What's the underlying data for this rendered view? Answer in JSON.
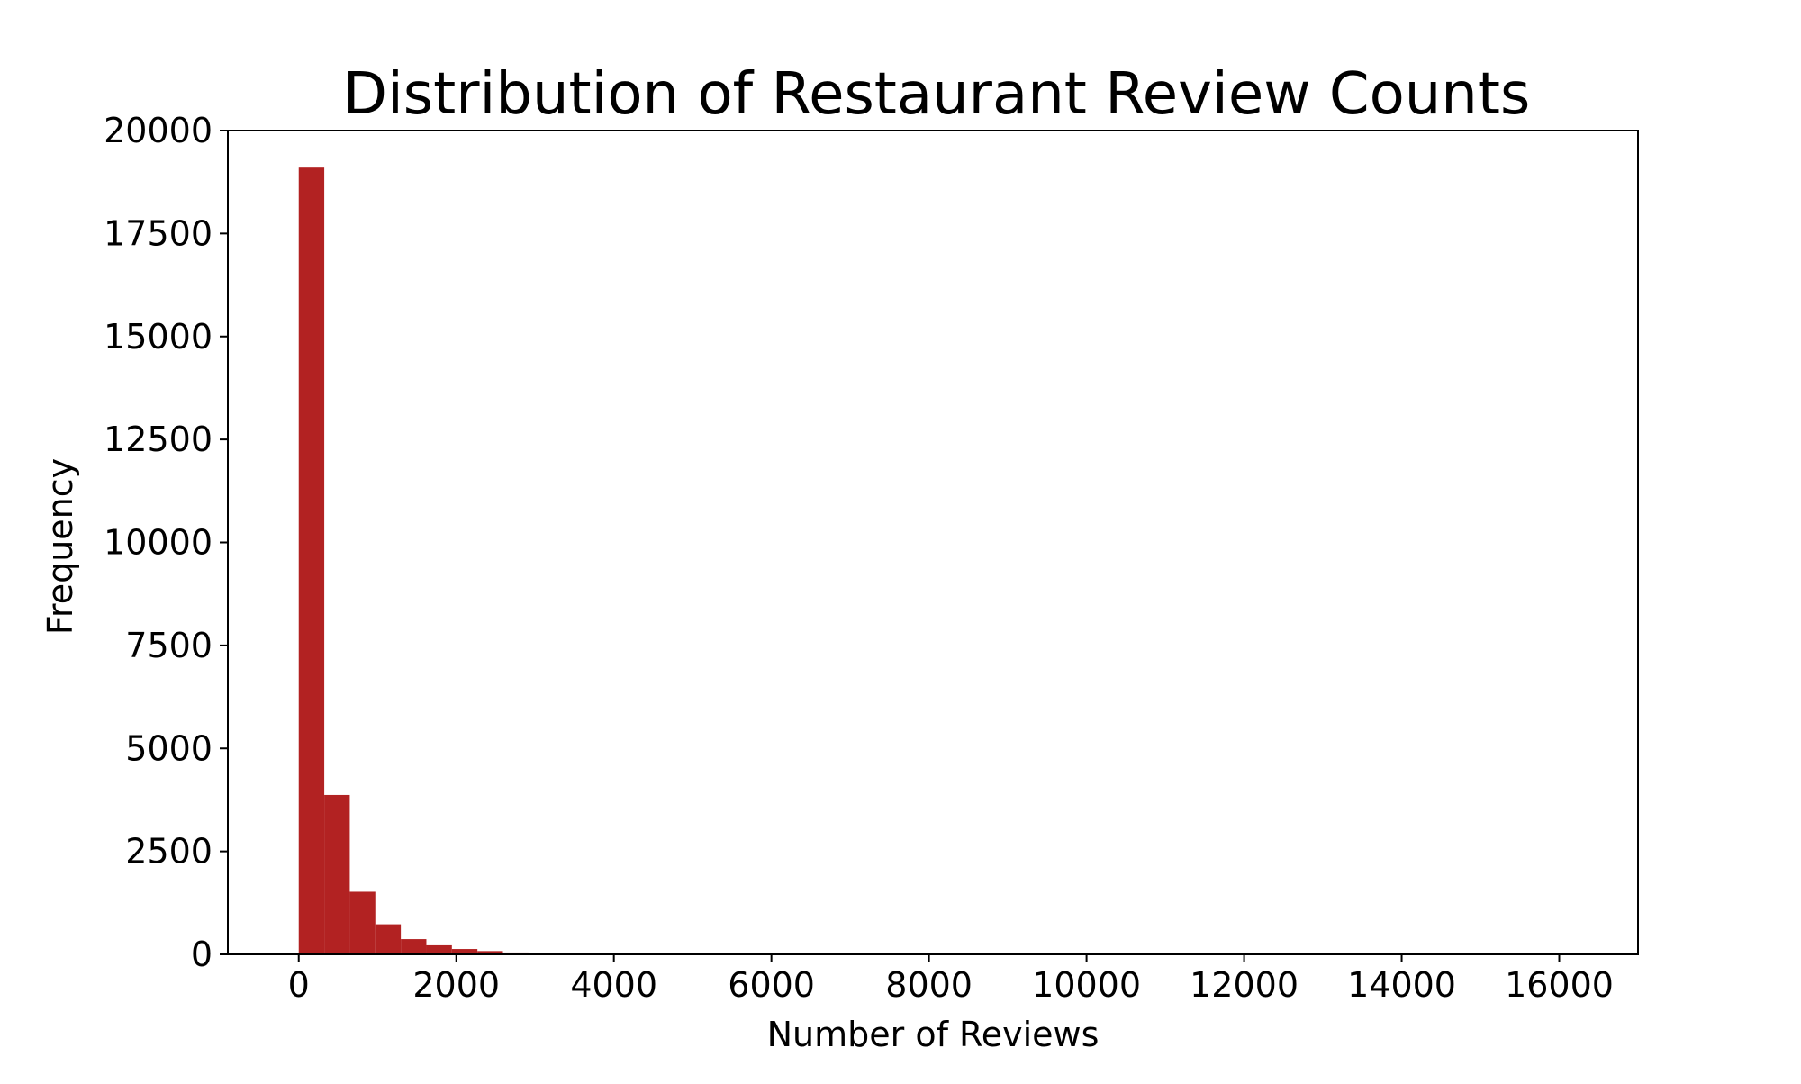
{
  "chart_data": {
    "type": "bar",
    "title": "Distribution of Restaurant Review Counts",
    "xlabel": "Number of Reviews",
    "ylabel": "Frequency",
    "xlim": [
      -900,
      17000
    ],
    "ylim": [
      0,
      20000
    ],
    "bin_width": 324,
    "bins": [
      {
        "x0": 0,
        "x1": 324,
        "count": 19100
      },
      {
        "x0": 324,
        "x1": 648,
        "count": 3870
      },
      {
        "x0": 648,
        "x1": 972,
        "count": 1520
      },
      {
        "x0": 972,
        "x1": 1296,
        "count": 730
      },
      {
        "x0": 1296,
        "x1": 1620,
        "count": 370
      },
      {
        "x0": 1620,
        "x1": 1944,
        "count": 220
      },
      {
        "x0": 1944,
        "x1": 2268,
        "count": 130
      },
      {
        "x0": 2268,
        "x1": 2592,
        "count": 80
      },
      {
        "x0": 2592,
        "x1": 2916,
        "count": 45
      },
      {
        "x0": 2916,
        "x1": 3240,
        "count": 30
      },
      {
        "x0": 3240,
        "x1": 3564,
        "count": 15
      },
      {
        "x0": 3564,
        "x1": 3888,
        "count": 8
      },
      {
        "x0": 3888,
        "x1": 4212,
        "count": 5
      }
    ],
    "x_ticks": [
      0,
      2000,
      4000,
      6000,
      8000,
      10000,
      12000,
      14000,
      16000
    ],
    "y_ticks": [
      0,
      2500,
      5000,
      7500,
      10000,
      12500,
      15000,
      17500,
      20000
    ],
    "bar_color": "#b22222",
    "grid": false,
    "legend": "none"
  }
}
